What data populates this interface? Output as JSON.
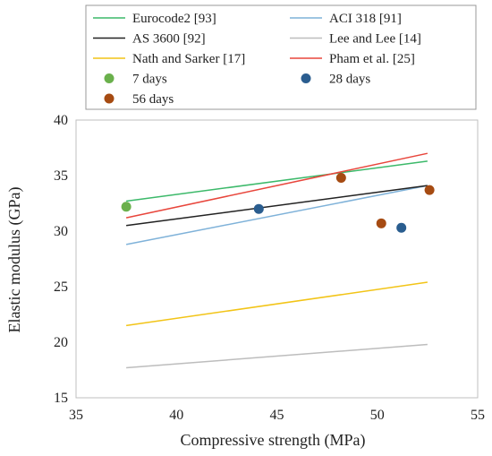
{
  "chart_data": {
    "type": "scatter",
    "xlabel": "Compressive strength (MPa)",
    "ylabel": "Elastic modulus (GPa)",
    "xlim": [
      35,
      55
    ],
    "ylim": [
      15,
      40
    ],
    "x_ticks": [
      35,
      40,
      45,
      50,
      55
    ],
    "y_ticks": [
      15,
      20,
      25,
      30,
      35,
      40
    ],
    "grid": false,
    "legend_position": "top",
    "lines": [
      {
        "name": "Eurocode2 [93]",
        "color": "#3cb96a",
        "x": [
          37.5,
          52.5
        ],
        "y": [
          32.7,
          36.3
        ]
      },
      {
        "name": "ACI 318 [91]",
        "color": "#7fb2d9",
        "x": [
          37.5,
          52.5
        ],
        "y": [
          28.8,
          34.1
        ]
      },
      {
        "name": "AS 3600 [92]",
        "color": "#222222",
        "x": [
          37.5,
          52.5
        ],
        "y": [
          30.5,
          34.1
        ]
      },
      {
        "name": "Lee and Lee [14]",
        "color": "#bdbdbd",
        "x": [
          37.5,
          52.5
        ],
        "y": [
          17.7,
          19.8
        ]
      },
      {
        "name": "Nath and Sarker [17]",
        "color": "#f2c417",
        "x": [
          37.5,
          52.5
        ],
        "y": [
          21.5,
          25.4
        ]
      },
      {
        "name": "Pham et al. [25]",
        "color": "#e8463c",
        "x": [
          37.5,
          52.5
        ],
        "y": [
          31.2,
          37.0
        ]
      }
    ],
    "points": [
      {
        "name": "7 days",
        "color": "#6ab04c",
        "x": [
          37.5
        ],
        "y": [
          32.2
        ]
      },
      {
        "name": "28 days",
        "color": "#2a5d8f",
        "x": [
          44.1,
          51.2
        ],
        "y": [
          32.0,
          30.3
        ]
      },
      {
        "name": "56 days",
        "color": "#a64b12",
        "x": [
          48.2,
          50.2,
          52.6
        ],
        "y": [
          34.8,
          30.7,
          33.7
        ]
      }
    ]
  }
}
